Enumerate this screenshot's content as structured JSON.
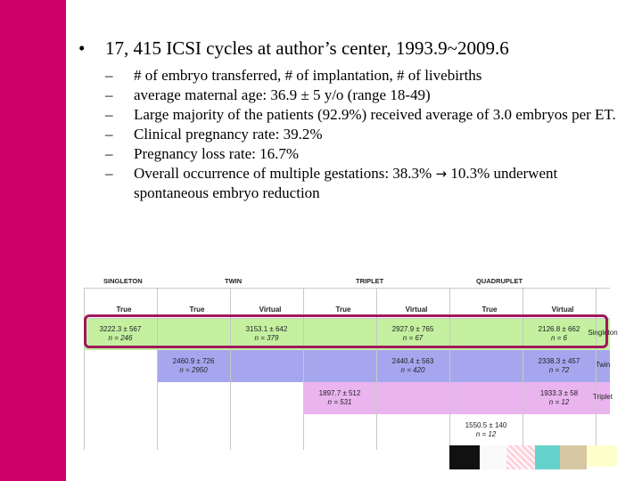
{
  "slide": {
    "main_bullet": "17, 415 ICSI cycles at author’s center, 1993.9~2009.6",
    "sub_items": [
      "# of embryo transferred, # of implantation, # of livebirths",
      "average maternal age: 36.9 ± 5 y/o (range 18-49)",
      "Large majority of the patients (92.9%) received average of 3.0 embryos per ET.",
      "Clinical pregnancy rate: 39.2%",
      "Pregnancy loss rate: 16.7%"
    ],
    "last_item_before": "Overall occurrence of multiple gestations: 38.3%",
    "last_item_after": "10.3% underwent spontaneous embryo reduction",
    "bullet_symbol": "•",
    "dash_symbol": "–",
    "arrow_symbol": "→"
  },
  "table": {
    "groups": [
      "SINGLETON",
      "TWIN",
      "TRIPLET",
      "QUADRUPLET"
    ],
    "headers": [
      "True",
      "True",
      "Virtual",
      "True",
      "Virtual",
      "True",
      "Virtual"
    ],
    "rows": [
      {
        "label": "Singleton",
        "color": "#c4f0a0",
        "cells": [
          {
            "value": "3222.3 ± 567",
            "n": "n = 246"
          },
          {
            "value": "",
            "n": ""
          },
          {
            "value": "3153.1 ± 642",
            "n": "n = 379"
          },
          {
            "value": "",
            "n": ""
          },
          {
            "value": "2927.9 ± 765",
            "n": "n = 67"
          },
          {
            "value": "",
            "n": ""
          },
          {
            "value": "2126.8 ± 662",
            "n": "n = 6"
          }
        ]
      },
      {
        "label": "Twin",
        "color": "#a6a6ef",
        "cells": [
          {
            "value": "",
            "n": ""
          },
          {
            "value": "2460.9 ± 726",
            "n": "n = 2950"
          },
          {
            "value": "",
            "n": ""
          },
          {
            "value": "",
            "n": ""
          },
          {
            "value": "2440.4 ± 563",
            "n": "n = 420"
          },
          {
            "value": "",
            "n": ""
          },
          {
            "value": "2338.3 ± 457",
            "n": "n = 72"
          }
        ]
      },
      {
        "label": "Triplet",
        "color": "#eab4ef",
        "cells": [
          {
            "value": "",
            "n": ""
          },
          {
            "value": "",
            "n": ""
          },
          {
            "value": "",
            "n": ""
          },
          {
            "value": "1897.7 ± 512",
            "n": "n = 531"
          },
          {
            "value": "",
            "n": ""
          },
          {
            "value": "",
            "n": ""
          },
          {
            "value": "1933.3 ± 58",
            "n": "n = 12"
          }
        ]
      },
      {
        "label": "",
        "color": "#ffffff",
        "cells": [
          {
            "value": "",
            "n": ""
          },
          {
            "value": "",
            "n": ""
          },
          {
            "value": "",
            "n": ""
          },
          {
            "value": "",
            "n": ""
          },
          {
            "value": "",
            "n": ""
          },
          {
            "value": "1550.5 ± 140",
            "n": "n = 12"
          },
          {
            "value": "",
            "n": ""
          }
        ]
      }
    ],
    "highlight_color": "#a0185a"
  },
  "theme": {
    "sidebar_color": "#cc0066"
  }
}
